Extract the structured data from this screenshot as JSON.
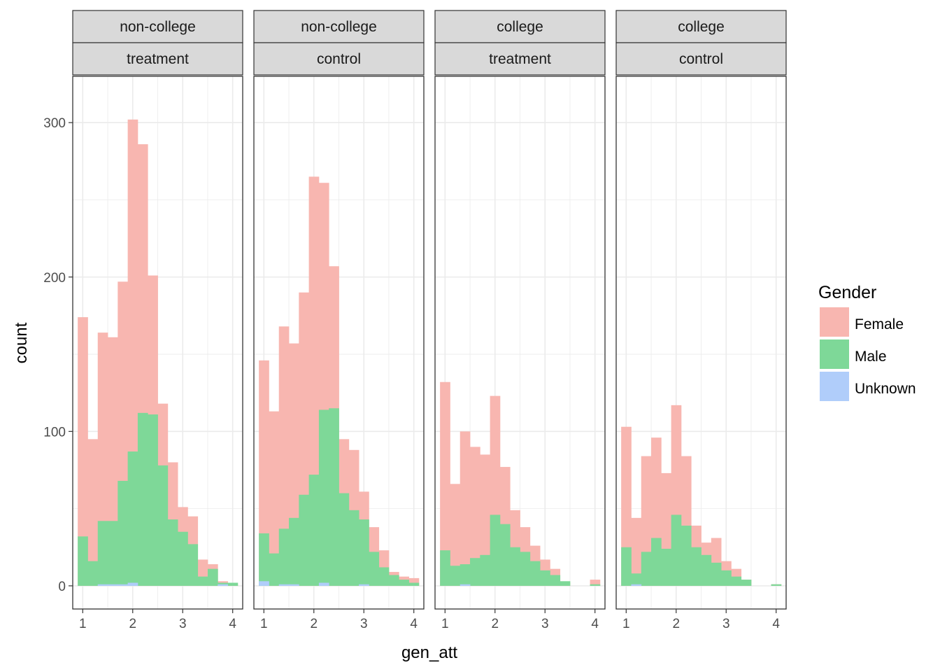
{
  "chart_data": {
    "type": "bar",
    "subtype": "faceted stacked histogram",
    "xlabel": "gen_att",
    "ylabel": "count",
    "xlim": [
      0.8,
      4.2
    ],
    "ylim": [
      -15,
      330
    ],
    "xticks": [
      1,
      2,
      3,
      4
    ],
    "yticks": [
      0,
      100,
      200,
      300
    ],
    "grid": true,
    "legend": {
      "title": "Gender",
      "position": "right",
      "entries": [
        "Female",
        "Male",
        "Unknown"
      ]
    },
    "colors": {
      "Female": "#f8b6b0",
      "Male": "#7ed898",
      "Unknown": "#b0cdfa",
      "panel_border": "#333333",
      "strip_fill": "#d9d9d9",
      "grid": "#ebebeb"
    },
    "bins": [
      0.9,
      1.1,
      1.3,
      1.5,
      1.7,
      1.9,
      2.1,
      2.3,
      2.5,
      2.7,
      2.9,
      3.1,
      3.3,
      3.5,
      3.7,
      3.9,
      4.1
    ],
    "panels": [
      {
        "strip_top": "non-college",
        "strip_bottom": "treatment",
        "series": [
          {
            "name": "Female",
            "values": [
              174,
              95,
              164,
              161,
              197,
              302,
              286,
              201,
              118,
              80,
              51,
              45,
              17,
              14,
              3,
              1
            ]
          },
          {
            "name": "Male",
            "values": [
              32,
              16,
              42,
              42,
              68,
              87,
              112,
              111,
              78,
              43,
              35,
              27,
              6,
              11,
              2,
              2
            ]
          },
          {
            "name": "Unknown",
            "values": [
              0,
              0,
              1,
              1,
              1,
              2,
              0,
              0,
              0,
              0,
              0,
              0,
              0,
              0,
              1,
              0
            ]
          }
        ]
      },
      {
        "strip_top": "non-college",
        "strip_bottom": "control",
        "series": [
          {
            "name": "Female",
            "values": [
              146,
              113,
              168,
              157,
              190,
              265,
              261,
              207,
              95,
              88,
              61,
              38,
              23,
              9,
              6,
              5
            ]
          },
          {
            "name": "Male",
            "values": [
              34,
              21,
              37,
              44,
              59,
              72,
              114,
              115,
              60,
              49,
              43,
              22,
              12,
              7,
              4,
              2
            ]
          },
          {
            "name": "Unknown",
            "values": [
              3,
              0,
              1,
              1,
              0,
              0,
              2,
              0,
              0,
              0,
              1,
              0,
              0,
              0,
              0,
              0
            ]
          }
        ]
      },
      {
        "strip_top": "college",
        "strip_bottom": "treatment",
        "series": [
          {
            "name": "Female",
            "values": [
              132,
              66,
              100,
              90,
              85,
              123,
              77,
              49,
              38,
              26,
              17,
              11,
              2,
              0,
              0,
              4
            ]
          },
          {
            "name": "Male",
            "values": [
              23,
              13,
              14,
              18,
              20,
              46,
              40,
              25,
              22,
              16,
              10,
              7,
              3,
              0,
              0,
              1
            ]
          },
          {
            "name": "Unknown",
            "values": [
              0,
              0,
              1,
              0,
              0,
              0,
              0,
              0,
              0,
              0,
              0,
              0,
              0,
              0,
              0,
              0
            ]
          }
        ]
      },
      {
        "strip_top": "college",
        "strip_bottom": "control",
        "series": [
          {
            "name": "Female",
            "values": [
              103,
              44,
              84,
              96,
              73,
              117,
              84,
              39,
              28,
              31,
              16,
              11,
              4,
              0,
              0,
              1
            ]
          },
          {
            "name": "Male",
            "values": [
              25,
              8,
              22,
              31,
              24,
              46,
              39,
              25,
              20,
              15,
              10,
              6,
              4,
              0,
              0,
              1
            ]
          },
          {
            "name": "Unknown",
            "values": [
              0,
              1,
              0,
              0,
              0,
              0,
              0,
              0,
              0,
              0,
              0,
              0,
              0,
              0,
              0,
              0
            ]
          }
        ]
      }
    ]
  }
}
